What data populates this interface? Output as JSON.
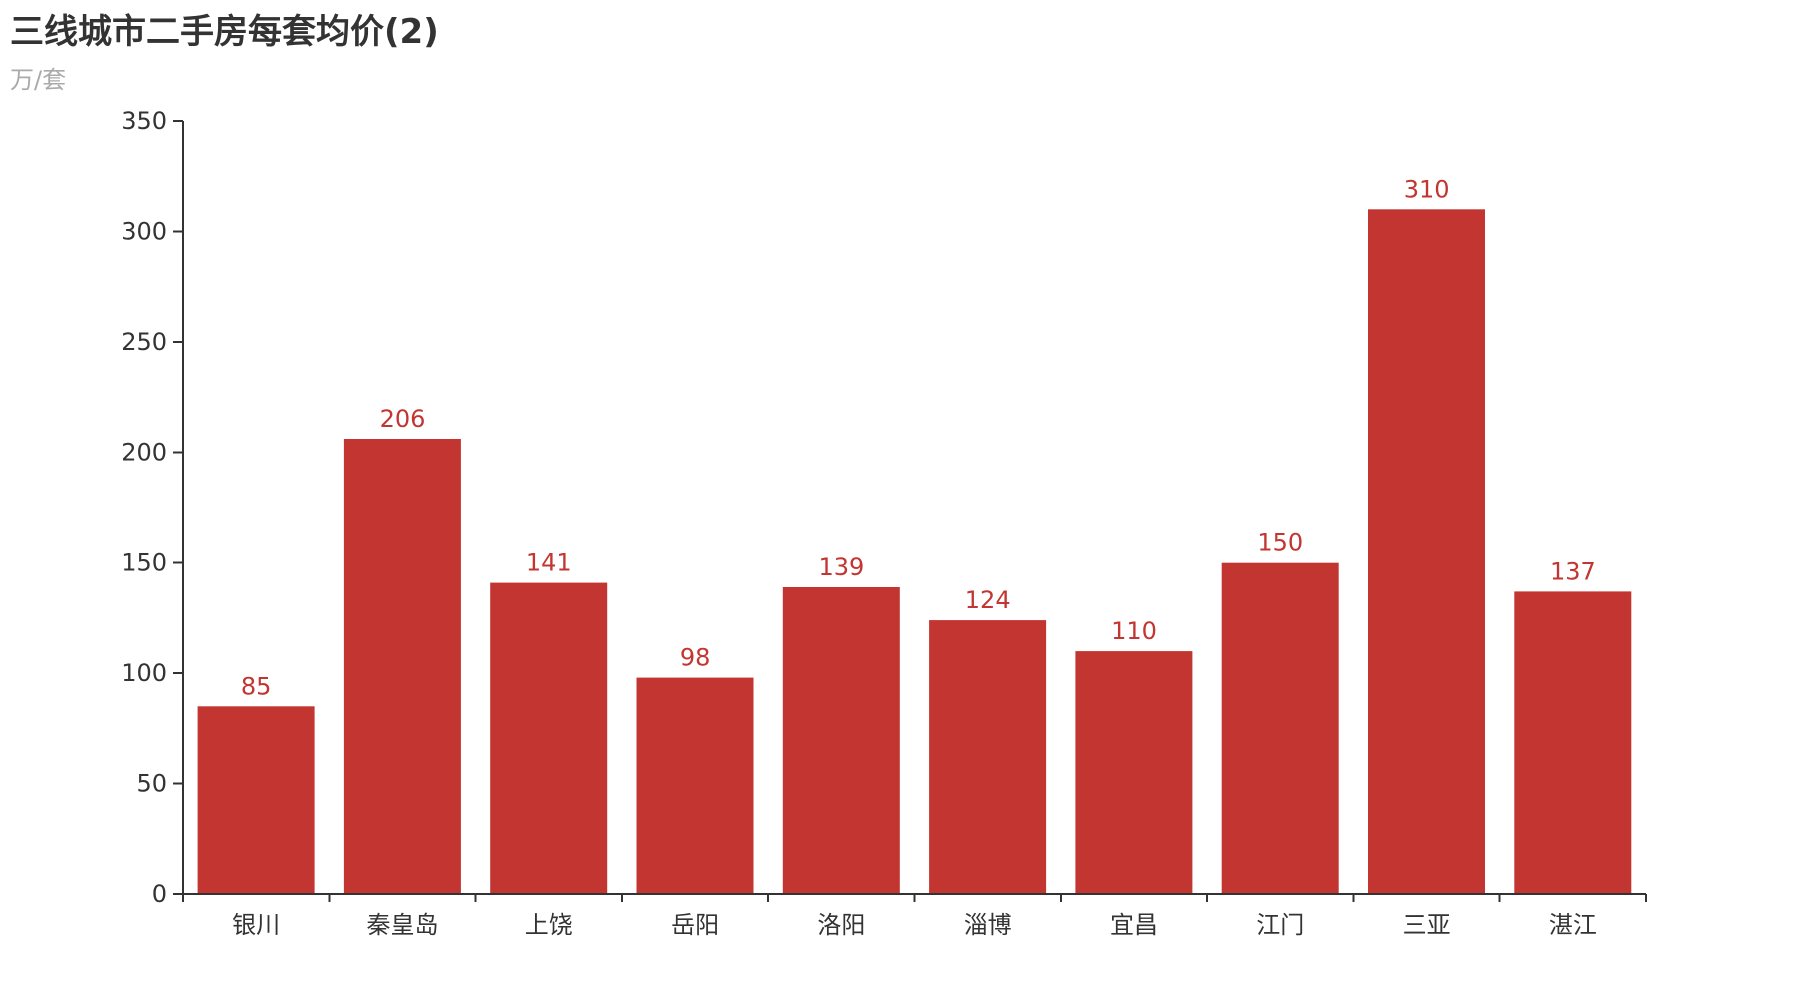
{
  "header": {
    "title": "三线城市二手房每套均价(2)",
    "subtitle": "万/套"
  },
  "chart_data": {
    "type": "bar",
    "title": "三线城市二手房每套均价(2)",
    "subtitle": "万/套",
    "xlabel": "",
    "ylabel": "",
    "categories": [
      "银川",
      "秦皇岛",
      "上饶",
      "岳阳",
      "洛阳",
      "淄博",
      "宜昌",
      "江门",
      "三亚",
      "湛江"
    ],
    "values": [
      85,
      206,
      141,
      98,
      139,
      124,
      110,
      150,
      310,
      137
    ],
    "ylim": [
      0,
      350
    ],
    "yticks": [
      0,
      50,
      100,
      150,
      200,
      250,
      300,
      350
    ],
    "grid": false,
    "legend": "none",
    "data_labels": true,
    "colors": {
      "bar": "#c23531",
      "label": "#c23531",
      "axis": "#333333"
    }
  }
}
